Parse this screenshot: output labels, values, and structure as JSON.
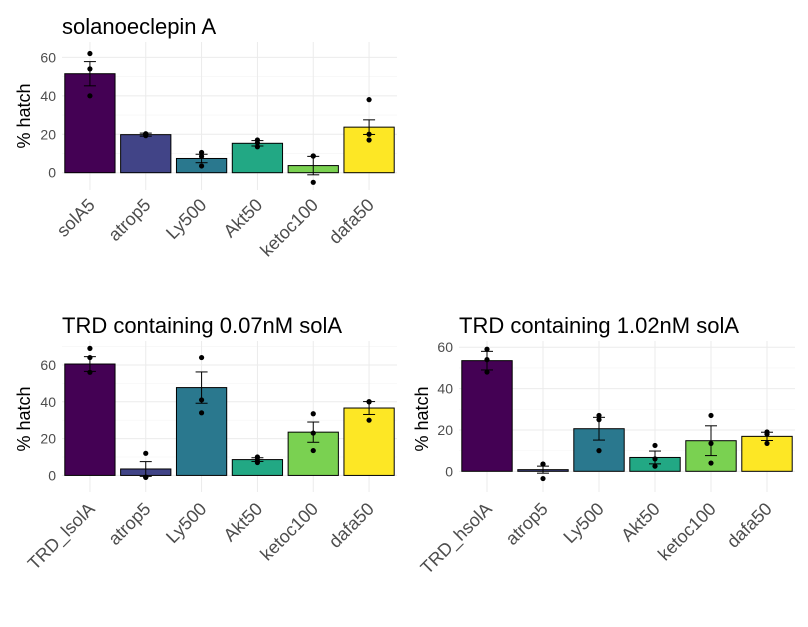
{
  "chart_data": [
    {
      "type": "bar",
      "title": "solanoeclepin A",
      "ylabel": "% hatch",
      "xlabel": "",
      "ylim": [
        -9,
        68
      ],
      "yticks": [
        0,
        20,
        40,
        60
      ],
      "categories": [
        "solA5",
        "atrop5",
        "Ly500",
        "Akt50",
        "ketoc100",
        "dafa50"
      ],
      "values": [
        51.5,
        19.8,
        7.4,
        15.3,
        3.7,
        23.7
      ],
      "errors": [
        6.3,
        0.8,
        2.2,
        1.4,
        4.8,
        3.8
      ],
      "points": [
        [
          62,
          54,
          40
        ],
        [
          19.3,
          20,
          20.3
        ],
        [
          3.5,
          8.5,
          10.5
        ],
        [
          13.5,
          15.5,
          17
        ],
        [
          8.7,
          -5,
          8.7
        ],
        [
          17,
          20,
          38
        ]
      ],
      "colors": [
        "#440154",
        "#414487",
        "#2a788e",
        "#22a884",
        "#7ad151",
        "#fde725"
      ],
      "grid": true,
      "legend": "none"
    },
    {
      "type": "bar",
      "title": "TRD containing 0.07nM solA",
      "ylabel": "% hatch",
      "xlabel": "",
      "ylim": [
        -9,
        73
      ],
      "yticks": [
        0,
        20,
        40,
        60
      ],
      "categories": [
        "TRD_lsolA",
        "atrop5",
        "Ly500",
        "Akt50",
        "ketoc100",
        "dafa50"
      ],
      "values": [
        60.5,
        3.5,
        47.7,
        8.6,
        23.5,
        36.6
      ],
      "errors": [
        4.0,
        4.0,
        8.5,
        1.0,
        5.5,
        3.5
      ],
      "points": [
        [
          69,
          64,
          56
        ],
        [
          12,
          -1,
          -1
        ],
        [
          64,
          41,
          34
        ],
        [
          7,
          8.5,
          10
        ],
        [
          33.5,
          23,
          13.5
        ],
        [
          40,
          30,
          40
        ]
      ],
      "colors": [
        "#440154",
        "#414487",
        "#2a788e",
        "#22a884",
        "#7ad151",
        "#fde725"
      ],
      "grid": true,
      "legend": "none"
    },
    {
      "type": "bar",
      "title": "TRD containing 1.02nM solA",
      "ylabel": "% hatch",
      "xlabel": "",
      "ylim": [
        -10,
        63
      ],
      "yticks": [
        0,
        20,
        40,
        60
      ],
      "categories": [
        "TRD_hsolA",
        "atrop5",
        "Ly500",
        "Akt50",
        "ketoc100",
        "dafa50"
      ],
      "values": [
        53.5,
        0.8,
        20.6,
        6.7,
        14.8,
        16.9
      ],
      "errors": [
        4.5,
        1.7,
        5.5,
        3.1,
        7.2,
        2.0
      ],
      "points": [
        [
          59,
          48,
          54
        ],
        [
          3.5,
          -3.5,
          3.5
        ],
        [
          27,
          25,
          10
        ],
        [
          12.5,
          2.5,
          6
        ],
        [
          27,
          13.5,
          4
        ],
        [
          18,
          19,
          13.5
        ]
      ],
      "colors": [
        "#440154",
        "#414487",
        "#2a788e",
        "#22a884",
        "#7ad151",
        "#fde725"
      ],
      "grid": true,
      "legend": "none"
    }
  ]
}
